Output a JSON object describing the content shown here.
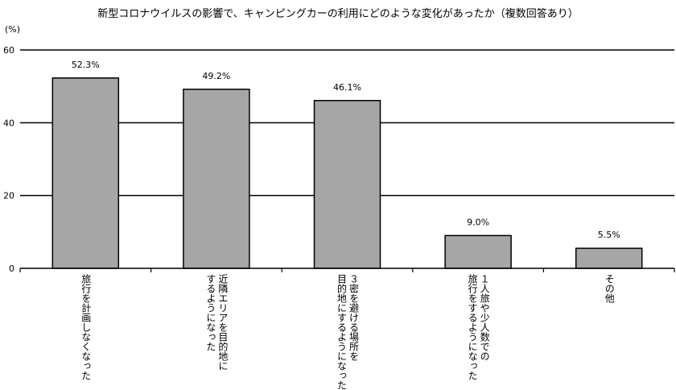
{
  "chart_data": {
    "type": "bar",
    "title": "新型コロナウイルスの影響で、キャンピングカーの利用にどのような変化があったか（複数回答あり）",
    "ylabel": "(%)",
    "ylim": [
      0,
      60
    ],
    "yticks": [
      0,
      20,
      40,
      60
    ],
    "grid": true,
    "categories": [
      "旅行を計画しなくなった",
      "近隣エリアを目的地に\nするようになった",
      "３密を避ける場所を\n目的地にするようになった",
      "１人旅や少人数での\n旅行をするようになった",
      "その他"
    ],
    "values": [
      52.3,
      49.2,
      46.1,
      9.0,
      5.5
    ],
    "value_labels": [
      "52.3%",
      "49.2%",
      "46.1%",
      "9.0%",
      "5.5%"
    ],
    "colors": {
      "bar_fill": "#a6a6a6",
      "bar_stroke": "#000000",
      "grid": "#000000"
    }
  }
}
